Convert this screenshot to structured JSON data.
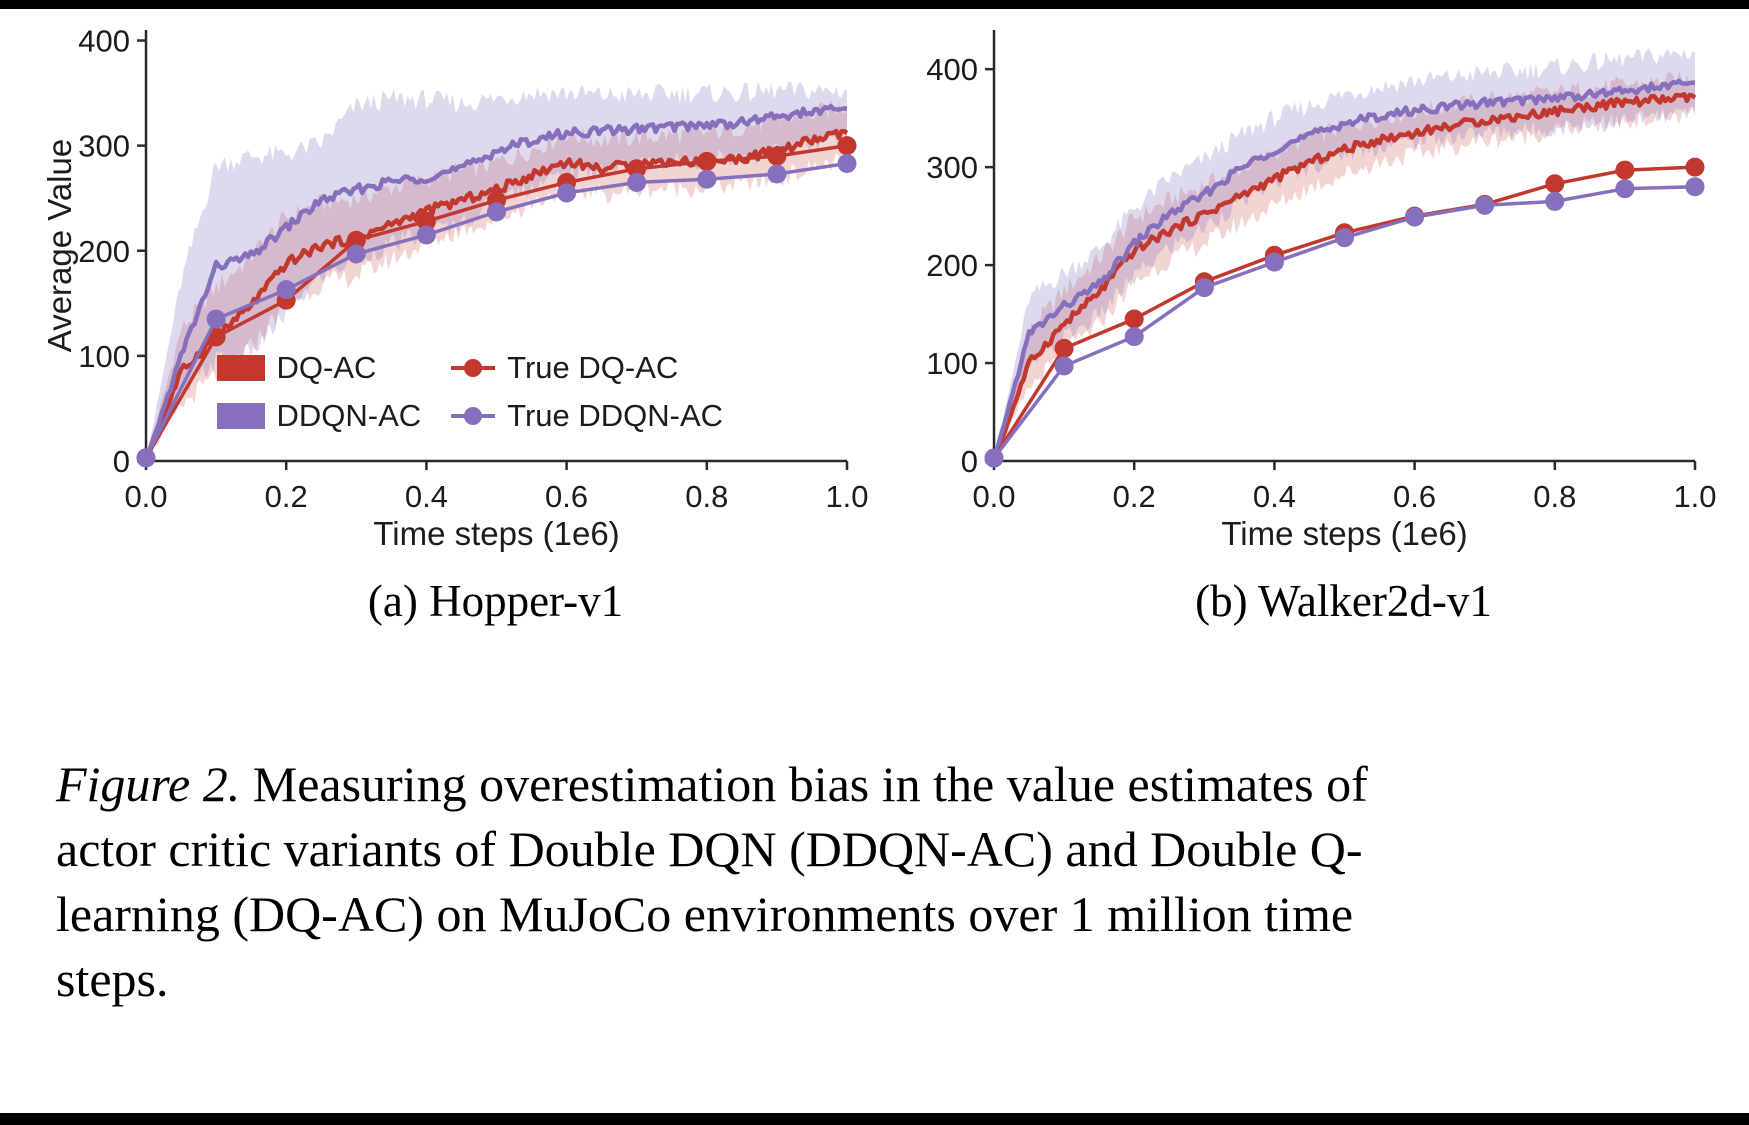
{
  "panels": [
    {
      "caption": "(a) Hopper-v1"
    },
    {
      "caption": "(b) Walker2d-v1"
    }
  ],
  "caption": {
    "label": "Figure 2.",
    "lines": [
      "Measuring overestimation bias in the value estimates of",
      "actor critic variants of Double DQN (DDQN-AC) and Double Q-",
      "learning (DQ-AC) on MuJoCo environments over 1 million time",
      "steps."
    ]
  },
  "colors": {
    "red": "#c2382e",
    "purple": "#8670bd"
  },
  "chart_data": [
    {
      "type": "line",
      "title": "(a) Hopper-v1",
      "xlabel": "Time steps (1e6)",
      "ylabel": "Average Value",
      "xlim": [
        0,
        1
      ],
      "ylim": [
        0,
        410
      ],
      "xticks": [
        0,
        0.2,
        0.4,
        0.6,
        0.8,
        1.0
      ],
      "xtick_labels": [
        "0.0",
        "0.2",
        "0.4",
        "0.6",
        "0.8",
        "1.0"
      ],
      "yticks": [
        0,
        100,
        200,
        300,
        400
      ],
      "ytick_labels": [
        "0",
        "100",
        "200",
        "300",
        "400"
      ],
      "grid": false,
      "legend": {
        "location": "inside lower-left",
        "columns": 2
      },
      "series": [
        {
          "name": "DQ-AC",
          "style": "band",
          "color": "#c2382e",
          "band_color": "rgba(196,62,54,0.22)",
          "x": [
            0,
            0.05,
            0.1,
            0.15,
            0.2,
            0.25,
            0.3,
            0.35,
            0.4,
            0.45,
            0.5,
            0.55,
            0.6,
            0.65,
            0.7,
            0.75,
            0.8,
            0.85,
            0.9,
            0.95,
            1
          ],
          "values": [
            0,
            85,
            118,
            148,
            188,
            205,
            212,
            225,
            238,
            248,
            258,
            272,
            285,
            278,
            283,
            285,
            285,
            288,
            295,
            305,
            312
          ],
          "band_upper": [
            0,
            125,
            165,
            195,
            232,
            245,
            250,
            260,
            268,
            276,
            284,
            296,
            312,
            305,
            308,
            310,
            312,
            318,
            325,
            330,
            338
          ],
          "band_lower": [
            0,
            52,
            82,
            108,
            150,
            168,
            176,
            192,
            206,
            220,
            230,
            245,
            260,
            254,
            258,
            260,
            260,
            263,
            268,
            278,
            288
          ]
        },
        {
          "name": "DDQN-AC",
          "style": "band",
          "color": "#8670bd",
          "band_color": "rgba(136,114,191,0.27)",
          "x": [
            0,
            0.05,
            0.1,
            0.15,
            0.2,
            0.25,
            0.3,
            0.35,
            0.4,
            0.45,
            0.5,
            0.55,
            0.6,
            0.65,
            0.7,
            0.75,
            0.8,
            0.85,
            0.9,
            0.95,
            1
          ],
          "values": [
            0,
            100,
            185,
            195,
            222,
            248,
            258,
            266,
            270,
            278,
            295,
            305,
            312,
            314,
            316,
            318,
            320,
            322,
            328,
            332,
            335
          ],
          "band_upper": [
            0,
            170,
            282,
            290,
            292,
            302,
            338,
            344,
            344,
            340,
            345,
            350,
            350,
            348,
            348,
            350,
            350,
            350,
            352,
            352,
            353
          ],
          "band_lower": [
            0,
            62,
            96,
            102,
            140,
            176,
            192,
            206,
            216,
            226,
            248,
            262,
            272,
            278,
            282,
            285,
            288,
            290,
            295,
            300,
            306
          ]
        },
        {
          "name": "True DQ-AC",
          "style": "markers",
          "color": "#c2382e",
          "x": [
            0,
            0.1,
            0.2,
            0.3,
            0.4,
            0.5,
            0.6,
            0.7,
            0.8,
            0.9,
            1
          ],
          "values": [
            3,
            118,
            153,
            210,
            228,
            248,
            265,
            278,
            285,
            290,
            300
          ]
        },
        {
          "name": "True DDQN-AC",
          "style": "markers",
          "color": "#8670bd",
          "x": [
            0,
            0.1,
            0.2,
            0.3,
            0.4,
            0.5,
            0.6,
            0.7,
            0.8,
            0.9,
            1
          ],
          "values": [
            3,
            135,
            163,
            197,
            215,
            237,
            255,
            265,
            268,
            273,
            283
          ]
        }
      ]
    },
    {
      "type": "line",
      "title": "(b) Walker2d-v1",
      "xlabel": "Time steps (1e6)",
      "ylabel": "",
      "xlim": [
        0,
        1
      ],
      "ylim": [
        0,
        440
      ],
      "xticks": [
        0,
        0.2,
        0.4,
        0.6,
        0.8,
        1.0
      ],
      "xtick_labels": [
        "0.0",
        "0.2",
        "0.4",
        "0.6",
        "0.8",
        "1.0"
      ],
      "yticks": [
        0,
        100,
        200,
        300,
        400
      ],
      "ytick_labels": [
        "0",
        "100",
        "200",
        "300",
        "400"
      ],
      "grid": false,
      "series": [
        {
          "name": "DQ-AC",
          "style": "band",
          "color": "#c2382e",
          "band_color": "rgba(196,62,54,0.22)",
          "x": [
            0,
            0.05,
            0.1,
            0.15,
            0.2,
            0.25,
            0.3,
            0.35,
            0.4,
            0.45,
            0.5,
            0.55,
            0.6,
            0.65,
            0.7,
            0.75,
            0.8,
            0.85,
            0.9,
            0.95,
            1
          ],
          "values": [
            0,
            100,
            140,
            172,
            215,
            235,
            252,
            270,
            288,
            305,
            318,
            328,
            335,
            342,
            348,
            352,
            357,
            362,
            366,
            369,
            371
          ],
          "band_upper": [
            0,
            132,
            174,
            206,
            248,
            266,
            282,
            298,
            315,
            330,
            342,
            351,
            357,
            363,
            368,
            372,
            376,
            380,
            384,
            387,
            391
          ],
          "band_lower": [
            0,
            74,
            110,
            140,
            182,
            205,
            222,
            242,
            261,
            279,
            293,
            305,
            313,
            320,
            327,
            331,
            337,
            343,
            347,
            350,
            353
          ]
        },
        {
          "name": "DDQN-AC",
          "style": "band",
          "color": "#8670bd",
          "band_color": "rgba(136,114,191,0.27)",
          "x": [
            0,
            0.05,
            0.1,
            0.15,
            0.2,
            0.25,
            0.3,
            0.35,
            0.4,
            0.45,
            0.5,
            0.55,
            0.6,
            0.65,
            0.7,
            0.75,
            0.8,
            0.85,
            0.9,
            0.95,
            1
          ],
          "values": [
            0,
            130,
            158,
            180,
            222,
            252,
            272,
            298,
            318,
            332,
            345,
            352,
            358,
            362,
            366,
            368,
            371,
            374,
            378,
            382,
            386
          ],
          "band_upper": [
            0,
            166,
            192,
            216,
            258,
            288,
            308,
            332,
            350,
            363,
            375,
            382,
            388,
            392,
            396,
            398,
            402,
            406,
            410,
            414,
            418
          ],
          "band_lower": [
            0,
            96,
            126,
            148,
            188,
            218,
            238,
            264,
            285,
            300,
            314,
            321,
            327,
            331,
            335,
            337,
            340,
            343,
            347,
            351,
            355
          ]
        },
        {
          "name": "True DQ-AC",
          "style": "markers",
          "color": "#c2382e",
          "x": [
            0,
            0.1,
            0.2,
            0.3,
            0.4,
            0.5,
            0.6,
            0.7,
            0.8,
            0.9,
            1
          ],
          "values": [
            3,
            115,
            145,
            183,
            210,
            233,
            250,
            262,
            283,
            297,
            300
          ]
        },
        {
          "name": "True DDQN-AC",
          "style": "markers",
          "color": "#8670bd",
          "x": [
            0,
            0.1,
            0.2,
            0.3,
            0.4,
            0.5,
            0.6,
            0.7,
            0.8,
            0.9,
            1
          ],
          "values": [
            3,
            97,
            127,
            177,
            203,
            228,
            249,
            261,
            265,
            278,
            280
          ]
        }
      ]
    }
  ]
}
